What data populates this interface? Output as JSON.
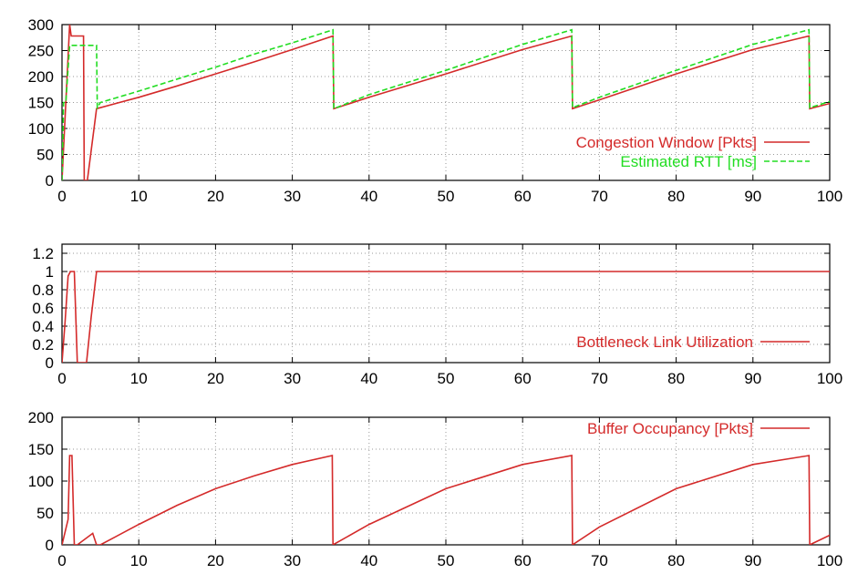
{
  "colors": {
    "congestion": "#d42a2a",
    "rtt": "#22dd22",
    "frame": "#000000",
    "grid": "#9a9a9a"
  },
  "chart_data": [
    {
      "type": "line",
      "x_ticks": [
        "0",
        "10",
        "20",
        "30",
        "40",
        "50",
        "60",
        "70",
        "80",
        "90",
        "100"
      ],
      "y_ticks": [
        "0",
        "50",
        "100",
        "150",
        "200",
        "250",
        "300"
      ],
      "xlim": [
        0,
        100
      ],
      "ylim": [
        0,
        300
      ],
      "grid": true,
      "legend_position": "bottom-right",
      "series": [
        {
          "name": "Congestion Window [Pkts]",
          "style": "solid",
          "color": "#d42a2a",
          "x": [
            0,
            0.5,
            1,
            1.2,
            1.8,
            2.8,
            2.9,
            3.0,
            3.3,
            4.5,
            10,
            15,
            20,
            25,
            30,
            35.3,
            35.4,
            40,
            50,
            60,
            66.4,
            66.5,
            70,
            80,
            90,
            97.3,
            97.4,
            100
          ],
          "values": [
            0,
            150,
            300,
            278,
            278,
            278,
            0,
            0,
            0,
            138,
            160,
            182,
            205,
            228,
            252,
            278,
            138,
            160,
            205,
            252,
            278,
            138,
            155,
            205,
            252,
            278,
            138,
            148
          ]
        },
        {
          "name": "Estimated RTT",
          "unit": "[ms]",
          "style": "dashed",
          "color": "#22dd22",
          "x": [
            0,
            0.2,
            0.5,
            1,
            1.5,
            4.5,
            4.6,
            5,
            10,
            15,
            20,
            25,
            30,
            35.3,
            35.4,
            40,
            50,
            60,
            66.4,
            66.5,
            70,
            80,
            90,
            97.3,
            97.4,
            100
          ],
          "values": [
            0,
            150,
            150,
            260,
            260,
            260,
            140,
            150,
            172,
            195,
            218,
            243,
            265,
            290,
            138,
            165,
            212,
            262,
            290,
            140,
            160,
            212,
            262,
            290,
            140,
            152
          ]
        }
      ]
    },
    {
      "type": "line",
      "x_ticks": [
        "0",
        "10",
        "20",
        "30",
        "40",
        "50",
        "60",
        "70",
        "80",
        "90",
        "100"
      ],
      "y_ticks": [
        "0",
        "0.2",
        "0.4",
        "0.6",
        "0.8",
        "1",
        "1.2"
      ],
      "xlim": [
        0,
        100
      ],
      "ylim": [
        0,
        1.3
      ],
      "grid": true,
      "legend_position": "bottom-right",
      "series": [
        {
          "name": "Bottleneck Link Utilization",
          "style": "solid",
          "color": "#d42a2a",
          "x": [
            0,
            0.4,
            0.8,
            1.1,
            1.6,
            2.0,
            3.2,
            3.8,
            4.5,
            10,
            20,
            30,
            40,
            50,
            60,
            70,
            80,
            90,
            100
          ],
          "values": [
            0,
            0.45,
            0.95,
            1.0,
            1.0,
            0,
            0,
            0.5,
            1.0,
            1.0,
            1.0,
            1.0,
            1.0,
            1.0,
            1.0,
            1.0,
            1.0,
            1.0,
            1.0
          ]
        }
      ]
    },
    {
      "type": "line",
      "x_ticks": [
        "0",
        "10",
        "20",
        "30",
        "40",
        "50",
        "60",
        "70",
        "80",
        "90",
        "100"
      ],
      "y_ticks": [
        "0",
        "50",
        "100",
        "150",
        "200"
      ],
      "xlim": [
        0,
        100
      ],
      "ylim": [
        0,
        200
      ],
      "grid": true,
      "legend_position": "top-right",
      "series": [
        {
          "name": "Buffer Occupancy [Pkts]",
          "style": "solid",
          "color": "#d42a2a",
          "x": [
            0,
            0.8,
            1.0,
            1.3,
            1.6,
            2.0,
            4.0,
            4.5,
            5,
            10,
            15,
            20,
            25,
            30,
            35.2,
            35.3,
            40,
            50,
            60,
            66.4,
            66.5,
            70,
            80,
            90,
            97.3,
            97.4,
            100
          ],
          "values": [
            0,
            40,
            140,
            140,
            0,
            0,
            18,
            0,
            0,
            32,
            62,
            88,
            108,
            126,
            140,
            0,
            32,
            88,
            126,
            140,
            0,
            28,
            88,
            126,
            140,
            0,
            15
          ]
        }
      ]
    }
  ]
}
